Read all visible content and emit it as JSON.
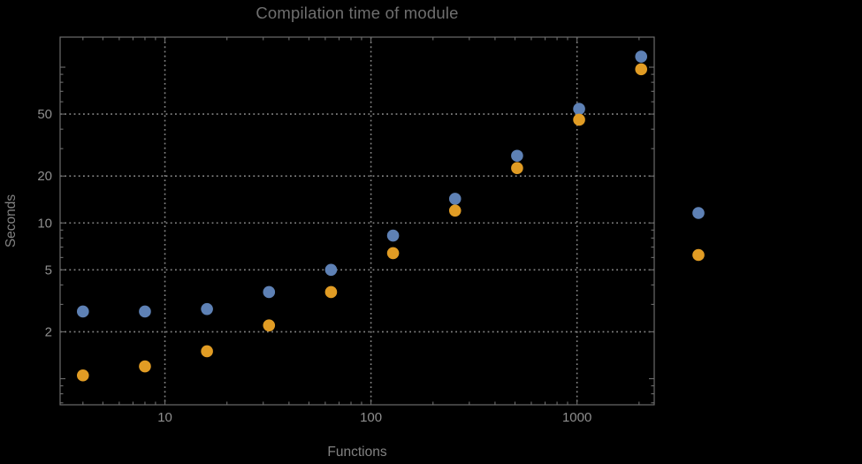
{
  "colors": {
    "background": "#000000",
    "frame": "#6c6c6c",
    "grid": "#868686",
    "tick_label": "#8e8e8e",
    "title_text": "#6f6f6f",
    "axis_label_text": "#828282",
    "series_blue": "#5e81b5",
    "series_orange": "#e19c24"
  },
  "chart_data": {
    "type": "scatter",
    "title": "Compilation time of module",
    "xlabel": "Functions",
    "ylabel": "Seconds",
    "xscale": "log",
    "yscale": "log",
    "grid": true,
    "legend_position": "right-outside",
    "legend_labels_visible": false,
    "x": [
      4,
      8,
      16,
      32,
      64,
      128,
      256,
      512,
      1024,
      2048
    ],
    "series": [
      {
        "name": "blue",
        "color": "#5e81b5",
        "values": [
          2.7,
          2.7,
          2.8,
          3.6,
          5.0,
          8.3,
          14.3,
          27,
          54,
          117
        ]
      },
      {
        "name": "orange",
        "color": "#e19c24",
        "values": [
          1.05,
          1.2,
          1.5,
          2.2,
          3.6,
          6.4,
          12,
          22.5,
          46,
          97
        ]
      }
    ],
    "xlim": [
      3.1,
      2370
    ],
    "ylim": [
      0.68,
      156
    ],
    "x_major_ticks": [
      10,
      100,
      1000
    ],
    "y_major_ticks": [
      2,
      5,
      10,
      20,
      50
    ],
    "y_unlabeled_major_ticks": [
      1,
      100
    ]
  }
}
